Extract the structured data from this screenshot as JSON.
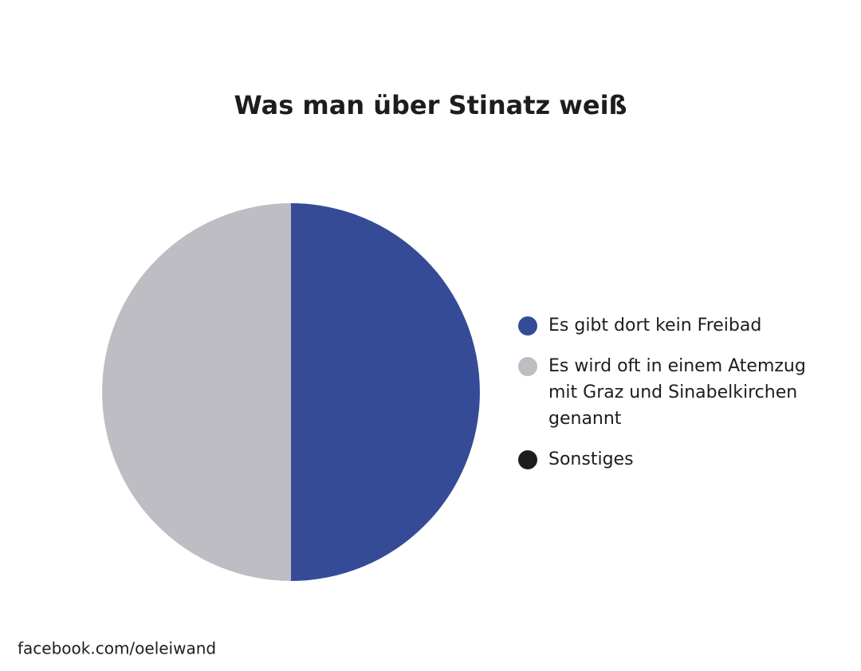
{
  "chart_data": {
    "type": "pie",
    "title": "Was man über Stinatz weiß",
    "categories": [
      "Es gibt dort kein Freibad",
      "Es wird oft in einem Atemzug mit Graz und Sinabelkirchen genannt",
      "Sonstiges"
    ],
    "values": [
      50,
      50,
      0
    ],
    "colors": [
      "#354b97",
      "#bdbdc3",
      "#1d1d1b"
    ],
    "legend": "right",
    "source": "facebook.com/oeleiwand"
  }
}
